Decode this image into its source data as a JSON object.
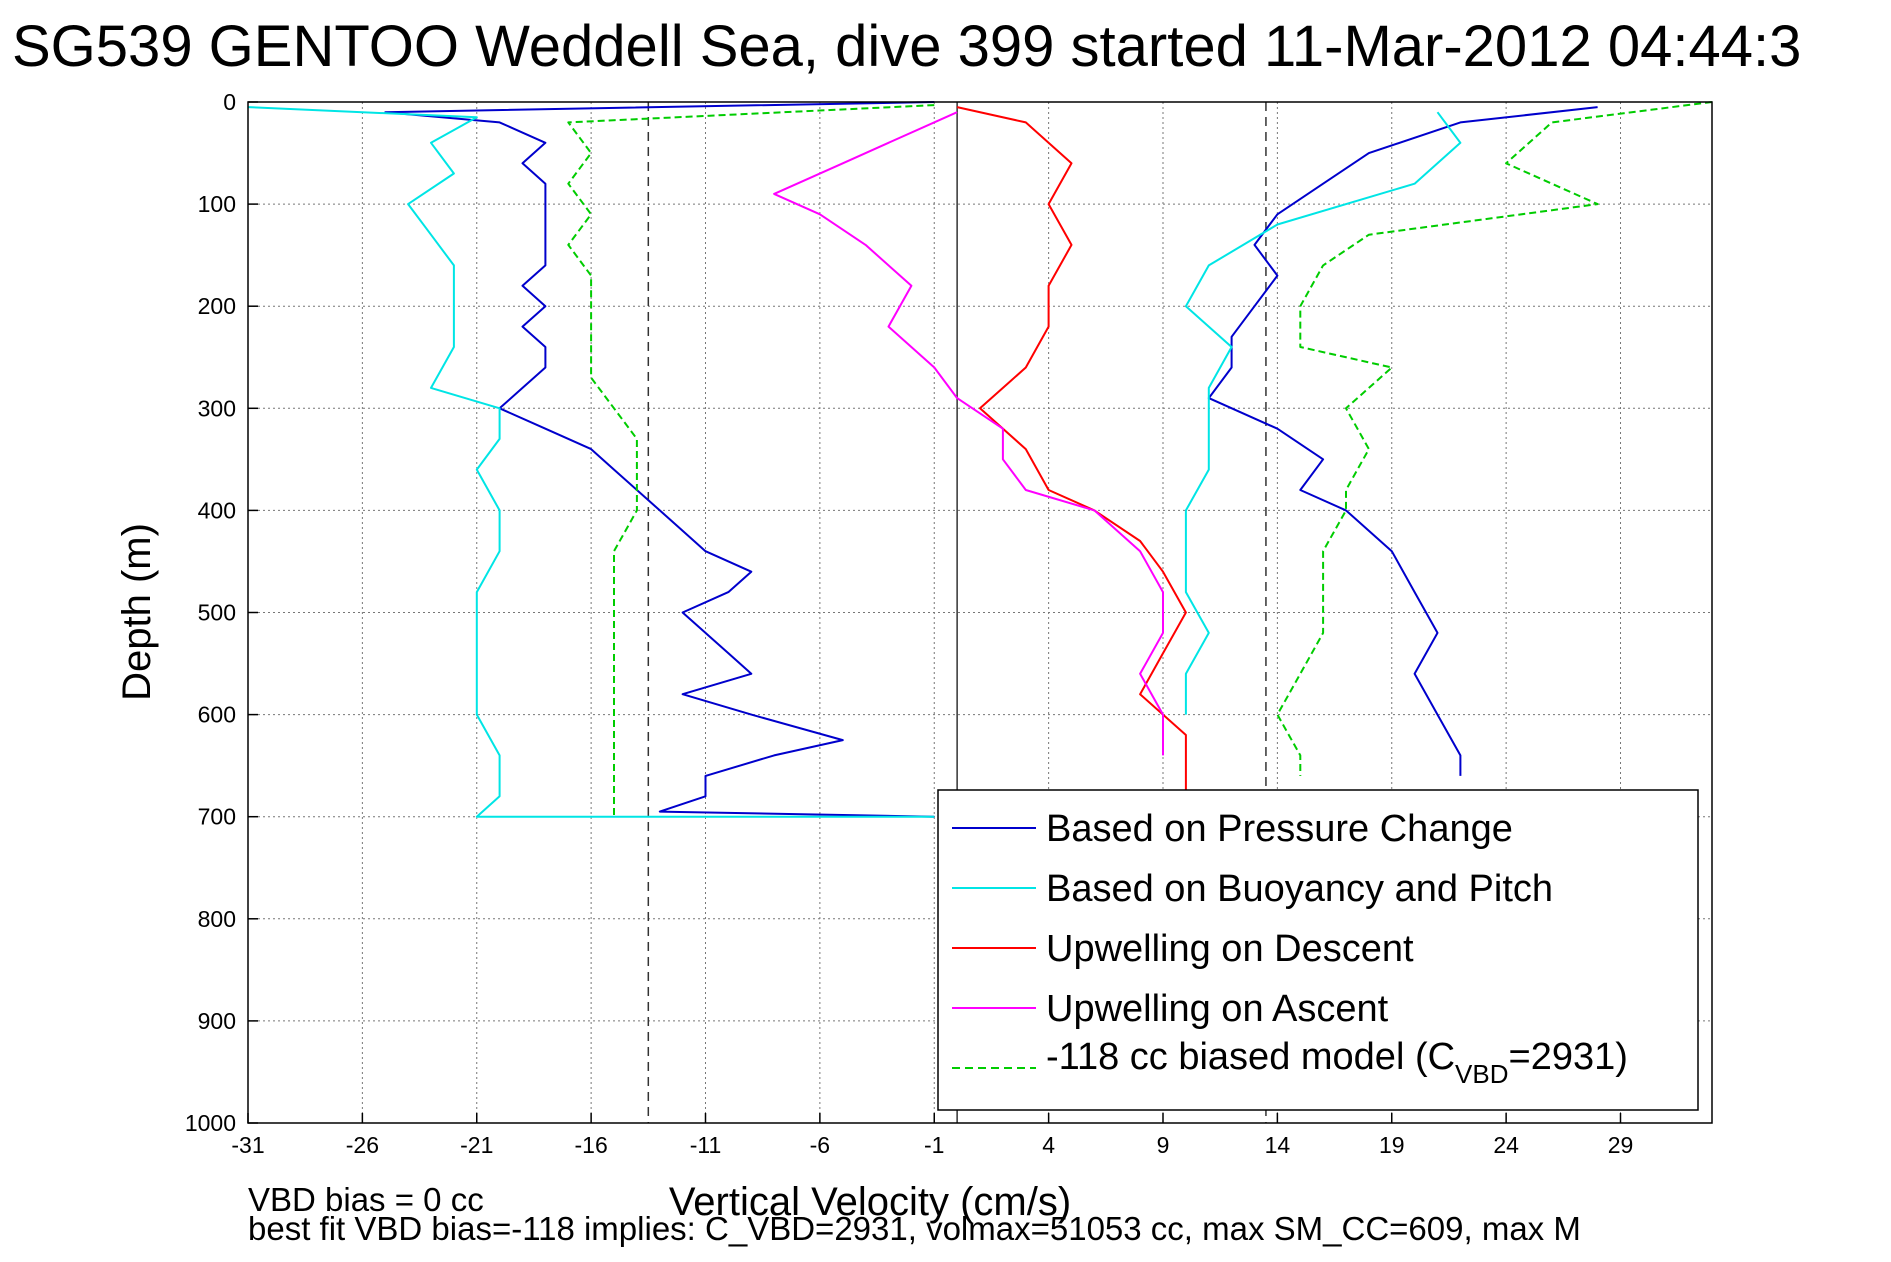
{
  "chart_data": {
    "type": "line",
    "title": "SG539 GENTOO Weddell Sea, dive 399 started 11-Mar-2012 04:44:3",
    "xlabel": "Vertical Velocity (cm/s)",
    "ylabel": "Depth (m)",
    "xlim": [
      -31,
      33
    ],
    "ylim": [
      0,
      1000
    ],
    "y_reversed": true,
    "grid": true,
    "legend_position": "bottom-right",
    "xticks": [
      -31,
      -26,
      -21,
      -16,
      -11,
      -6,
      -1,
      4,
      9,
      14,
      19,
      24,
      29
    ],
    "yticks": [
      0,
      100,
      200,
      300,
      400,
      500,
      600,
      700,
      800,
      900,
      1000
    ],
    "reference_lines": [
      {
        "x": -13.5,
        "style": "dashed"
      },
      {
        "x": 0,
        "style": "solid"
      },
      {
        "x": 13.5,
        "style": "dashed"
      }
    ],
    "legend": {
      "entries": [
        {
          "label": "Based on Pressure Change",
          "color": "#0000cc"
        },
        {
          "label": "Based on Buoyancy and Pitch",
          "color": "#00e5e5"
        },
        {
          "label": "Upwelling on Descent",
          "color": "#ff0000"
        },
        {
          "label": "Upwelling on Ascent",
          "color": "#ff00ff"
        }
      ],
      "model_entry": {
        "prefix": "-118 cc biased model (C",
        "subscript": "VBD",
        "suffix": "=2931)",
        "color": "#00cc00"
      }
    },
    "series": [
      {
        "name": "Based on Pressure Change",
        "role": "descent",
        "color": "#0000cc",
        "style": "solid",
        "points": [
          [
            -1,
            0
          ],
          [
            -25,
            10
          ],
          [
            -20,
            20
          ],
          [
            -18,
            40
          ],
          [
            -19,
            60
          ],
          [
            -18,
            80
          ],
          [
            -18,
            100
          ],
          [
            -18,
            120
          ],
          [
            -18,
            140
          ],
          [
            -18,
            160
          ],
          [
            -19,
            180
          ],
          [
            -18,
            200
          ],
          [
            -19,
            220
          ],
          [
            -18,
            240
          ],
          [
            -18,
            260
          ],
          [
            -19,
            280
          ],
          [
            -20,
            300
          ],
          [
            -18,
            320
          ],
          [
            -16,
            340
          ],
          [
            -15,
            360
          ],
          [
            -14,
            380
          ],
          [
            -13,
            400
          ],
          [
            -12,
            420
          ],
          [
            -11,
            440
          ],
          [
            -9,
            460
          ],
          [
            -10,
            480
          ],
          [
            -12,
            500
          ],
          [
            -11,
            520
          ],
          [
            -10,
            540
          ],
          [
            -9,
            560
          ],
          [
            -12,
            580
          ],
          [
            -9,
            600
          ],
          [
            -5,
            625
          ],
          [
            -8,
            640
          ],
          [
            -11,
            660
          ],
          [
            -11,
            680
          ],
          [
            -13,
            695
          ],
          [
            -1,
            700
          ]
        ]
      },
      {
        "name": "Based on Buoyancy and Pitch",
        "role": "descent",
        "color": "#00e5e5",
        "style": "solid",
        "points": [
          [
            -31,
            5
          ],
          [
            -21,
            15
          ],
          [
            -23,
            40
          ],
          [
            -22,
            70
          ],
          [
            -24,
            100
          ],
          [
            -23,
            130
          ],
          [
            -22,
            160
          ],
          [
            -22,
            200
          ],
          [
            -22,
            240
          ],
          [
            -23,
            280
          ],
          [
            -20,
            300
          ],
          [
            -20,
            330
          ],
          [
            -21,
            360
          ],
          [
            -20,
            400
          ],
          [
            -20,
            440
          ],
          [
            -21,
            480
          ],
          [
            -21,
            520
          ],
          [
            -21,
            560
          ],
          [
            -21,
            600
          ],
          [
            -20,
            640
          ],
          [
            -20,
            680
          ],
          [
            -21,
            700
          ],
          [
            -1,
            700
          ]
        ]
      },
      {
        "name": "-118 cc biased model (CVBD=2931)",
        "role": "descent",
        "color": "#00cc00",
        "style": "dashed",
        "points": [
          [
            -1,
            3
          ],
          [
            -17,
            20
          ],
          [
            -16,
            50
          ],
          [
            -17,
            80
          ],
          [
            -16,
            110
          ],
          [
            -17,
            140
          ],
          [
            -16,
            170
          ],
          [
            -16,
            200
          ],
          [
            -16,
            240
          ],
          [
            -16,
            270
          ],
          [
            -15,
            300
          ],
          [
            -14,
            330
          ],
          [
            -14,
            360
          ],
          [
            -14,
            400
          ],
          [
            -15,
            440
          ],
          [
            -15,
            480
          ],
          [
            -15,
            520
          ],
          [
            -15,
            560
          ],
          [
            -15,
            600
          ],
          [
            -15,
            640
          ],
          [
            -15,
            680
          ],
          [
            -15,
            700
          ]
        ]
      },
      {
        "name": "Upwelling on Descent",
        "role": "descent",
        "color": "#ff0000",
        "style": "solid",
        "points": [
          [
            0,
            5
          ],
          [
            3,
            20
          ],
          [
            5,
            60
          ],
          [
            4,
            100
          ],
          [
            5,
            140
          ],
          [
            4,
            180
          ],
          [
            4,
            220
          ],
          [
            3,
            260
          ],
          [
            1,
            300
          ],
          [
            3,
            340
          ],
          [
            4,
            380
          ],
          [
            6,
            400
          ],
          [
            8,
            430
          ],
          [
            9,
            460
          ],
          [
            10,
            500
          ],
          [
            9,
            540
          ],
          [
            8,
            580
          ],
          [
            10,
            620
          ],
          [
            10,
            660
          ],
          [
            10,
            680
          ]
        ]
      },
      {
        "name": "Based on Pressure Change",
        "role": "ascent",
        "color": "#0000cc",
        "style": "solid",
        "points": [
          [
            28,
            5
          ],
          [
            22,
            20
          ],
          [
            18,
            50
          ],
          [
            16,
            80
          ],
          [
            14,
            110
          ],
          [
            13,
            140
          ],
          [
            14,
            170
          ],
          [
            13,
            200
          ],
          [
            12,
            230
          ],
          [
            12,
            260
          ],
          [
            11,
            290
          ],
          [
            14,
            320
          ],
          [
            16,
            350
          ],
          [
            15,
            380
          ],
          [
            17,
            400
          ],
          [
            19,
            440
          ],
          [
            20,
            480
          ],
          [
            21,
            520
          ],
          [
            20,
            560
          ],
          [
            21,
            600
          ],
          [
            22,
            640
          ],
          [
            22,
            660
          ]
        ]
      },
      {
        "name": "Based on Buoyancy and Pitch",
        "role": "ascent",
        "color": "#00e5e5",
        "style": "solid",
        "points": [
          [
            21,
            10
          ],
          [
            22,
            40
          ],
          [
            20,
            80
          ],
          [
            14,
            120
          ],
          [
            11,
            160
          ],
          [
            10,
            200
          ],
          [
            12,
            240
          ],
          [
            11,
            280
          ],
          [
            11,
            320
          ],
          [
            11,
            360
          ],
          [
            10,
            400
          ],
          [
            10,
            440
          ],
          [
            10,
            480
          ],
          [
            11,
            520
          ],
          [
            10,
            560
          ],
          [
            10,
            600
          ]
        ]
      },
      {
        "name": "-118 cc biased model (CVBD=2931)",
        "role": "ascent",
        "color": "#00cc00",
        "style": "dashed",
        "points": [
          [
            33,
            0
          ],
          [
            26,
            20
          ],
          [
            24,
            60
          ],
          [
            28,
            100
          ],
          [
            18,
            130
          ],
          [
            16,
            160
          ],
          [
            15,
            200
          ],
          [
            15,
            240
          ],
          [
            19,
            260
          ],
          [
            17,
            300
          ],
          [
            18,
            340
          ],
          [
            17,
            380
          ],
          [
            17,
            400
          ],
          [
            16,
            440
          ],
          [
            16,
            480
          ],
          [
            16,
            520
          ],
          [
            15,
            560
          ],
          [
            14,
            600
          ],
          [
            15,
            640
          ],
          [
            15,
            660
          ]
        ]
      },
      {
        "name": "Upwelling on Ascent",
        "role": "ascent",
        "color": "#ff00ff",
        "style": "solid",
        "points": [
          [
            0,
            10
          ],
          [
            -3,
            40
          ],
          [
            -5,
            60
          ],
          [
            -8,
            90
          ],
          [
            -6,
            110
          ],
          [
            -4,
            140
          ],
          [
            -2,
            180
          ],
          [
            -3,
            220
          ],
          [
            -1,
            260
          ],
          [
            0,
            290
          ],
          [
            2,
            320
          ],
          [
            2,
            350
          ],
          [
            3,
            380
          ],
          [
            6,
            400
          ],
          [
            8,
            440
          ],
          [
            9,
            480
          ],
          [
            9,
            520
          ],
          [
            8,
            560
          ],
          [
            9,
            600
          ],
          [
            9,
            640
          ]
        ]
      }
    ],
    "footer": {
      "line1": "VBD bias = 0 cc",
      "line2": "best fit VBD bias=-118 implies: C_VBD=2931, volmax=51053 cc, max SM_CC=609, max M"
    }
  }
}
